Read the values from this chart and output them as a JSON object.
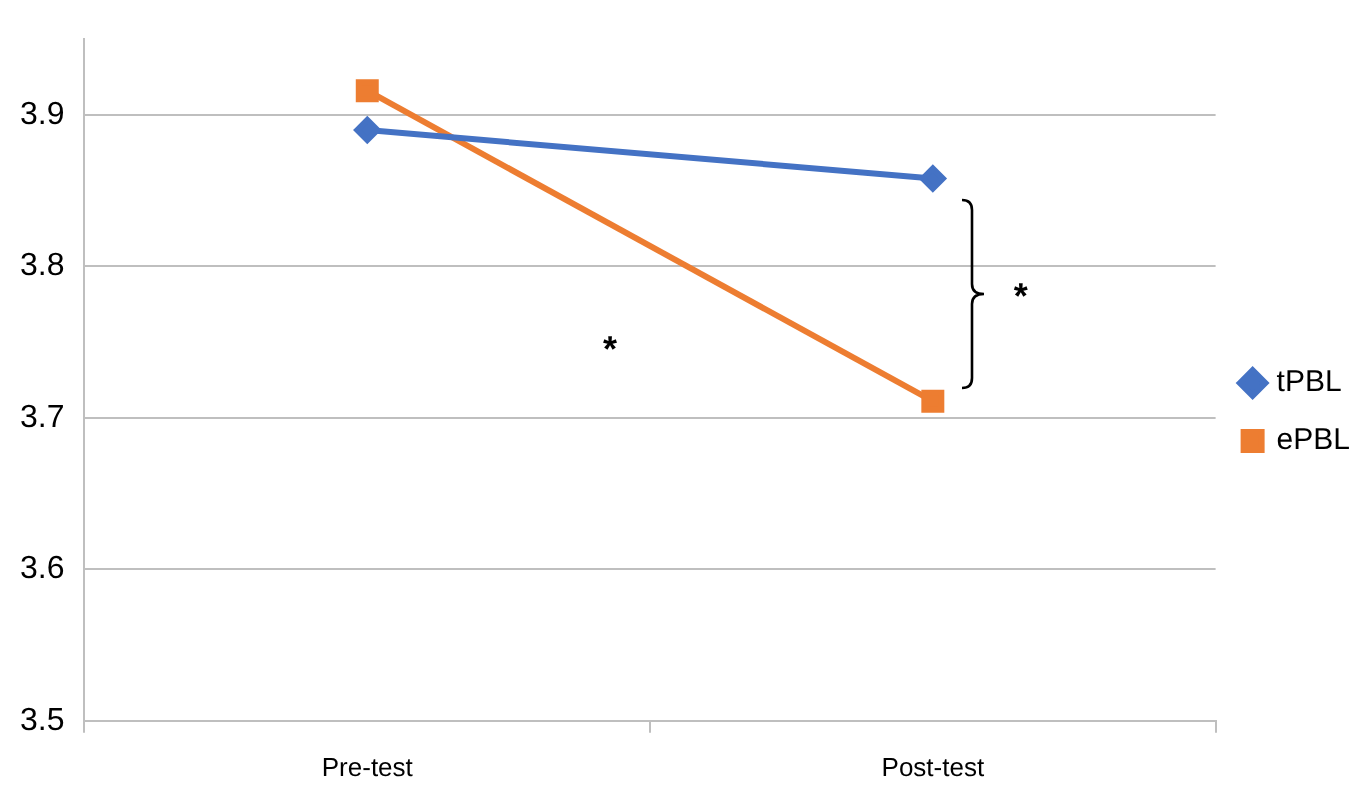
{
  "chart_data": {
    "type": "line",
    "categories": [
      "Pre-test",
      "Post-test"
    ],
    "series": [
      {
        "name": "tPBL",
        "color": "#4472c4",
        "marker": "diamond",
        "values": [
          3.89,
          3.858
        ]
      },
      {
        "name": "ePBL",
        "color": "#ed7d31",
        "marker": "square",
        "values": [
          3.916,
          3.711
        ]
      }
    ],
    "ylim": [
      3.5,
      3.95
    ],
    "yticks": [
      3.5,
      3.6,
      3.7,
      3.8,
      3.9
    ],
    "grid": "y",
    "legend": "right",
    "annotations": [
      "*",
      "*"
    ]
  }
}
